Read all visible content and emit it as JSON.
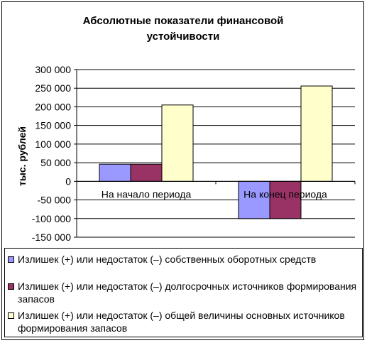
{
  "chart_data": {
    "type": "bar",
    "title": "Абсолютные показатели финансовой устойчивости",
    "title_lines": [
      "Абсолютные показатели финансовой",
      "устойчивости"
    ],
    "xlabel": "",
    "ylabel": "тыс. рублей",
    "ylim": [
      -150000,
      300000
    ],
    "yticks": [
      300000,
      250000,
      200000,
      150000,
      100000,
      50000,
      0,
      -50000,
      -100000,
      -150000
    ],
    "ytick_labels": [
      "300 000",
      "250 000",
      "200 000",
      "150 000",
      "100 000",
      "50 000",
      "0",
      "-50 000",
      "-100 000",
      "-150 000"
    ],
    "grid": true,
    "legend_position": "bottom",
    "categories": [
      "На начало периода",
      "На конец периода"
    ],
    "series": [
      {
        "name": "Излишек (+) или недостаток (–) собственных оборотных средств",
        "values": [
          46000,
          -100000
        ],
        "color": "#9999ff"
      },
      {
        "name": "Излишек (+) или недостаток (–) долгосрочных источников формирования запасов",
        "values": [
          46000,
          -100000
        ],
        "color": "#993366"
      },
      {
        "name": "Излишек (+) или недостаток (–) общей величины основных источников формирования запасов",
        "values": [
          205000,
          256000
        ],
        "color": "#ffffcc"
      }
    ]
  }
}
